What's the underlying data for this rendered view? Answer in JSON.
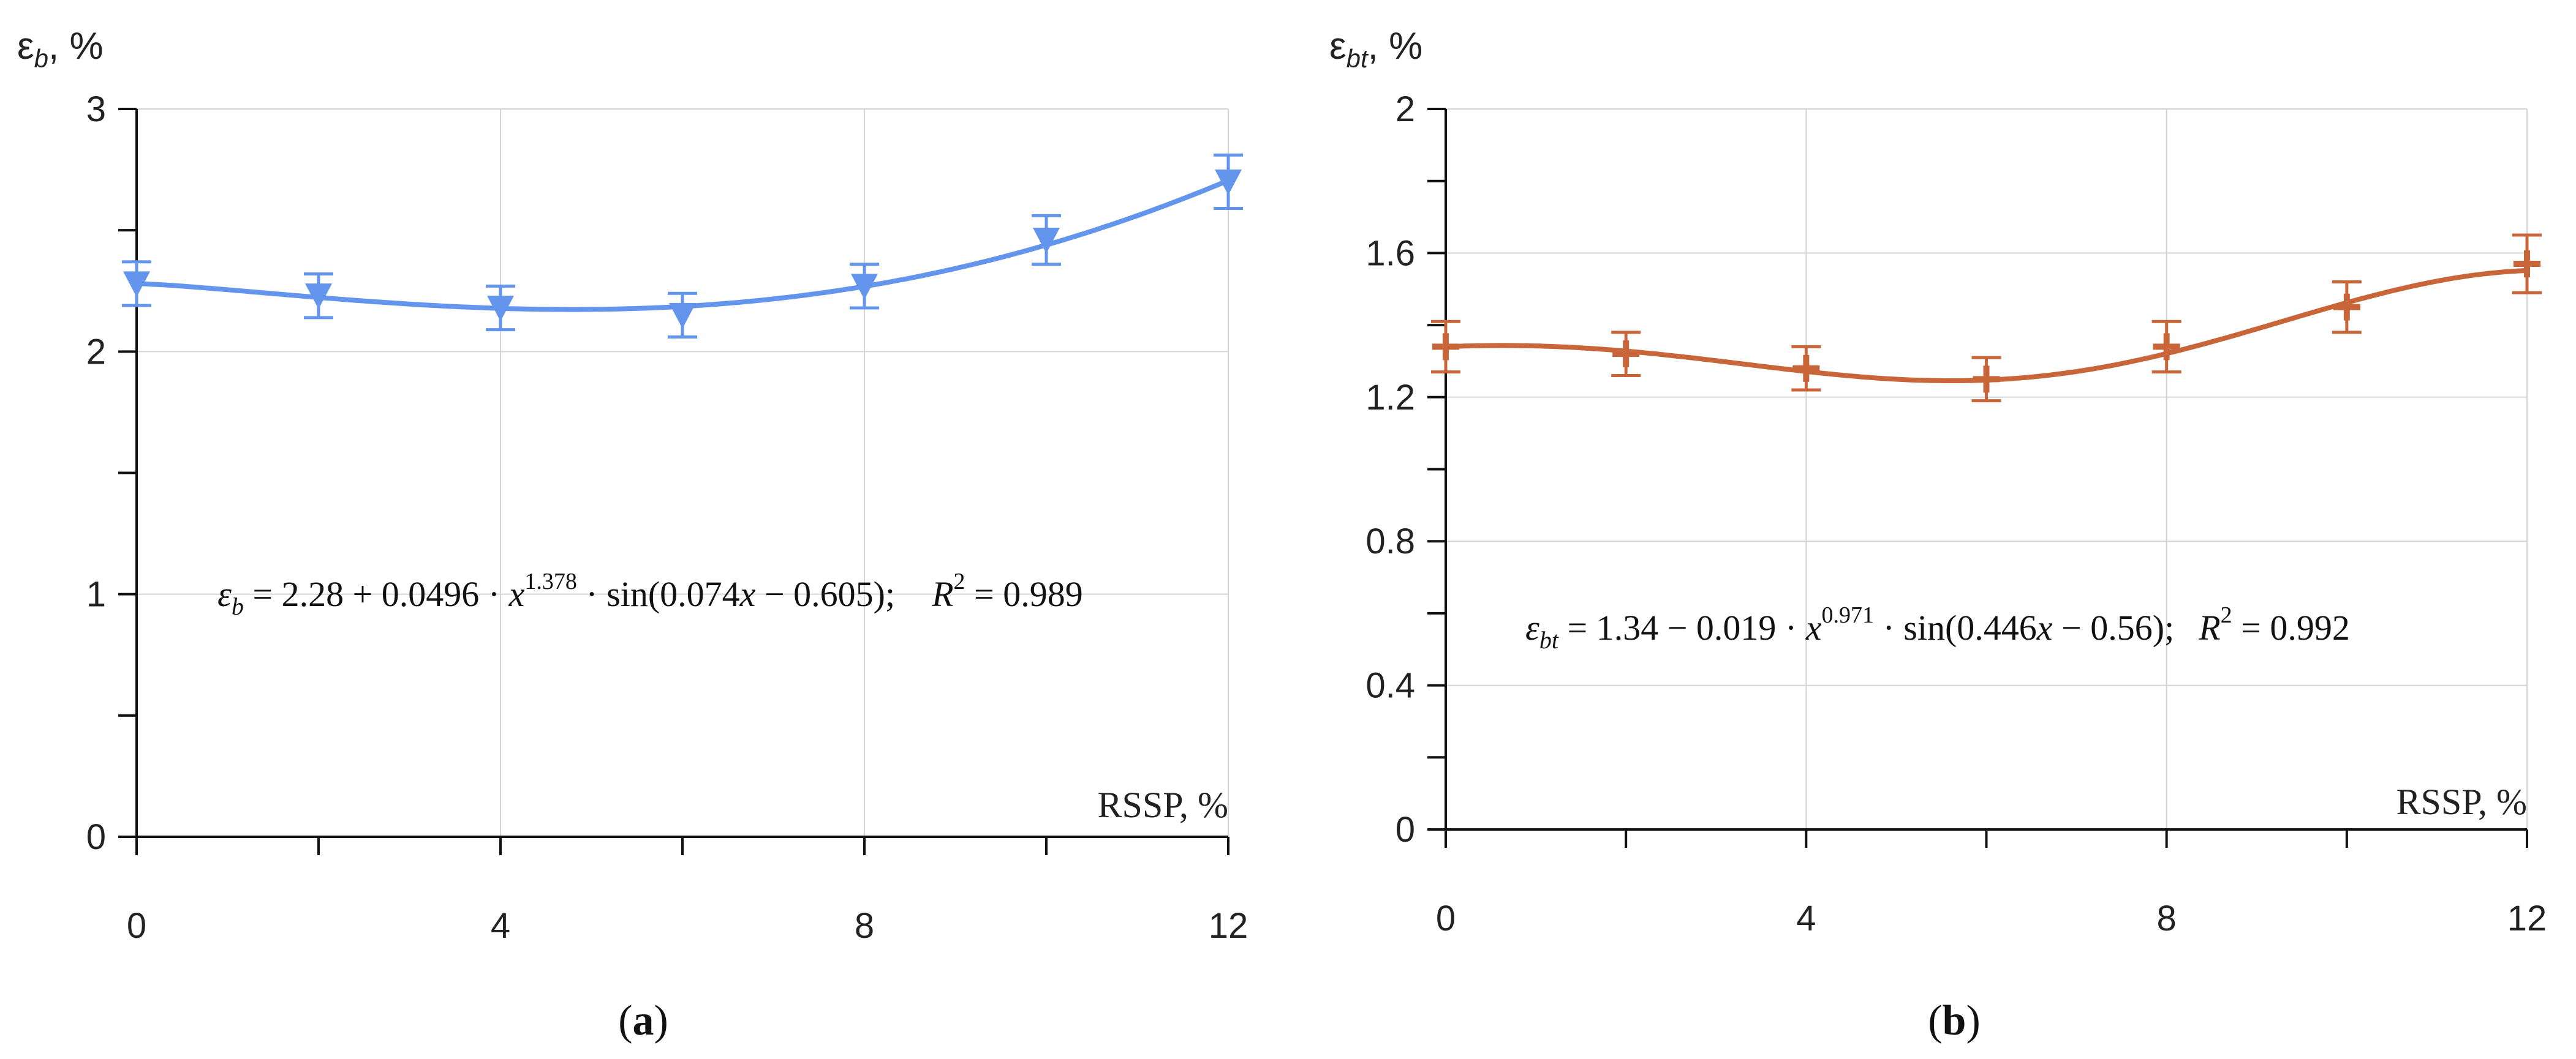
{
  "chart_data": [
    {
      "type": "line",
      "panel": "a",
      "caption_letter": "a",
      "ylabel_symbol": "ε",
      "ylabel_sub": "b",
      "ylabel_unit": ", %",
      "xlabel": "RSSP, %",
      "xlim": [
        0,
        12
      ],
      "ylim": [
        0,
        3
      ],
      "x_major_ticks": [
        0,
        4,
        8,
        12
      ],
      "x_tick_labels": [
        "0",
        "4",
        "8",
        "12"
      ],
      "x_minor_ticks": [
        2,
        6,
        10
      ],
      "y_major_ticks": [
        0,
        1,
        2,
        3
      ],
      "y_tick_labels": [
        "0",
        "1",
        "2",
        "3"
      ],
      "y_minor_ticks": [
        0.5,
        1.5,
        2.5
      ],
      "grid": true,
      "marker": "triangle-down",
      "color": "#6495ED",
      "series": [
        {
          "name": "ε_b",
          "x": [
            0,
            2,
            4,
            6,
            8,
            10,
            12
          ],
          "y": [
            2.28,
            2.23,
            2.18,
            2.15,
            2.27,
            2.46,
            2.7
          ],
          "error": [
            0.09,
            0.09,
            0.09,
            0.09,
            0.09,
            0.1,
            0.11
          ]
        }
      ],
      "fit": {
        "base": 2.28,
        "coef": 0.0496,
        "power": 1.378,
        "freq": 0.074,
        "phase": -0.605,
        "sign": "+"
      },
      "equation": {
        "lhs": "ε",
        "lhs_sub": "b",
        "rhs_a": " = 2.28 + 0.0496 · ",
        "x1": "x",
        "exp": "1.378",
        "rhs_b": " · sin(0.074",
        "x2": "x",
        "rhs_c": " − 0.605);",
        "r_label": "R",
        "r_exp": "2",
        "r_value": " = 0.989"
      }
    },
    {
      "type": "line",
      "panel": "b",
      "caption_letter": "b",
      "ylabel_symbol": "ε",
      "ylabel_sub": "bt",
      "ylabel_unit": ", %",
      "xlabel": "RSSP, %",
      "xlim": [
        0,
        12
      ],
      "ylim": [
        0,
        2
      ],
      "x_major_ticks": [
        0,
        4,
        8,
        12
      ],
      "x_tick_labels": [
        "0",
        "4",
        "8",
        "12"
      ],
      "x_minor_ticks": [
        2,
        6,
        10
      ],
      "y_major_ticks": [
        0,
        0.4,
        0.8,
        1.2,
        1.6,
        2
      ],
      "y_tick_labels": [
        "0",
        "0.4",
        "0.8",
        "1.2",
        "1.6",
        "2"
      ],
      "y_minor_ticks": [
        0.2,
        0.6,
        1.0,
        1.4,
        1.8
      ],
      "grid": true,
      "marker": "plus",
      "color": "#C8663A",
      "series": [
        {
          "name": "ε_bt",
          "x": [
            0,
            2,
            4,
            6,
            8,
            10,
            12
          ],
          "y": [
            1.34,
            1.32,
            1.28,
            1.25,
            1.34,
            1.45,
            1.57
          ],
          "error": [
            0.07,
            0.06,
            0.06,
            0.06,
            0.07,
            0.07,
            0.08
          ]
        }
      ],
      "fit": {
        "base": 1.34,
        "coef": 0.019,
        "power": 0.971,
        "freq": 0.446,
        "phase": -0.56,
        "sign": "-"
      },
      "equation": {
        "lhs": "ε",
        "lhs_sub": "bt",
        "rhs_a": " = 1.34 − 0.019 · ",
        "x1": "x",
        "exp": "0.971",
        "rhs_b": " · sin(0.446",
        "x2": "x",
        "rhs_c": " − 0.56);",
        "r_label": "R",
        "r_exp": "2",
        "r_value": " = 0.992"
      }
    }
  ]
}
